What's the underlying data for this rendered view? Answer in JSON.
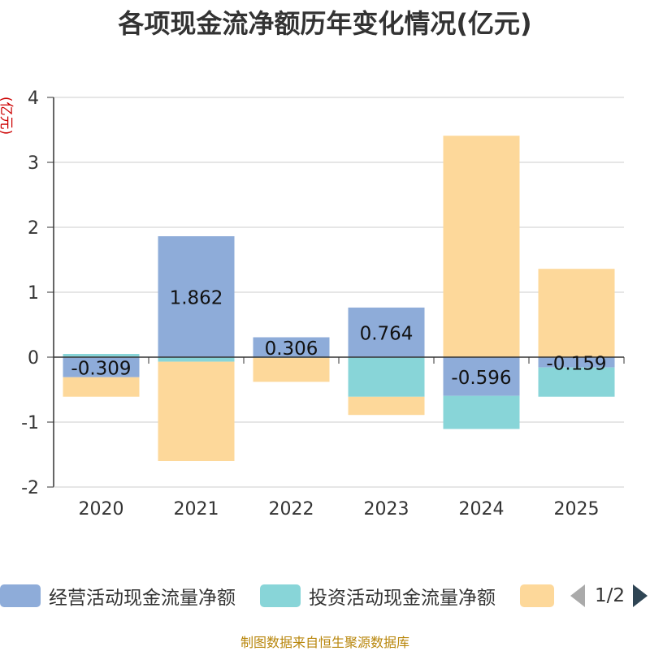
{
  "title": "各项现金流净额历年变化情况(亿元)",
  "unit_label": "(亿元)",
  "source": "制图数据来自恒生聚源数据库",
  "legend": {
    "items": [
      {
        "label": "经营活动现金流量净额",
        "color": "#8eacd9"
      },
      {
        "label": "投资活动现金流量净额",
        "color": "#88d5d8"
      },
      {
        "label": "",
        "color": "#fdd89a"
      }
    ],
    "page": "1/2"
  },
  "chart_data": {
    "type": "bar",
    "stacked": true,
    "categories": [
      "2020",
      "2021",
      "2022",
      "2023",
      "2024",
      "2025"
    ],
    "ylim": [
      -2,
      4
    ],
    "yticks": [
      -2,
      -1,
      0,
      1,
      2,
      3,
      4
    ],
    "series": [
      {
        "name": "经营活动现金流量净额",
        "color": "#8eacd9",
        "values": [
          -0.309,
          1.862,
          0.306,
          0.764,
          -0.596,
          -0.159
        ]
      },
      {
        "name": "投资活动现金流量净额",
        "color": "#88d5d8",
        "values": [
          0.05,
          -0.07,
          -0.01,
          -0.61,
          -0.51,
          -0.45
        ]
      },
      {
        "name": "",
        "color": "#fdd89a",
        "values": [
          -0.3,
          -1.53,
          -0.37,
          -0.28,
          3.41,
          1.36
        ]
      }
    ],
    "data_labels": [
      "-0.309",
      "1.862",
      "0.306",
      "0.764",
      "-0.596",
      "-0.159"
    ]
  }
}
